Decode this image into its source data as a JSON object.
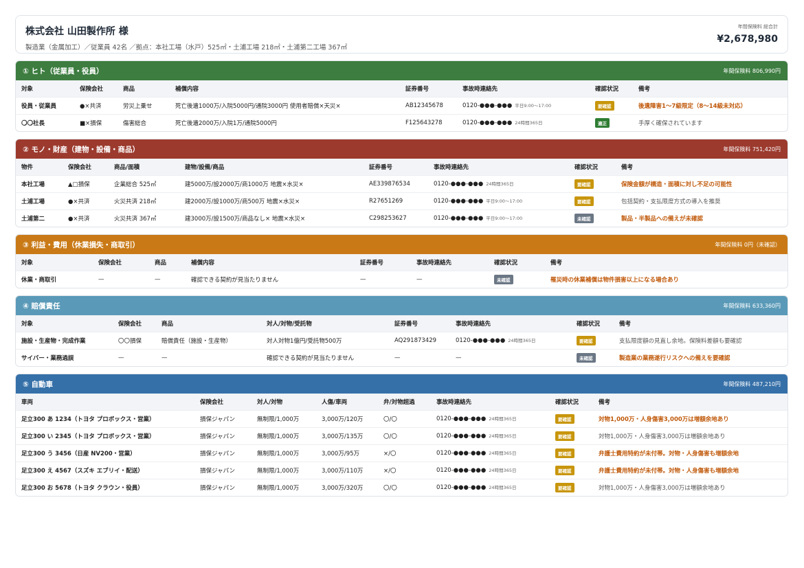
{
  "header": {
    "title": "株式会社 山田製作所 様",
    "subtitle": "製造業（金属加工）／従業員 42名 ／拠点：本社工場（水戸）525㎡・土浦工場 218㎡・土浦第二工場 367㎡",
    "total_label": "年間保険料 総合計",
    "total_amount": "¥2,678,980"
  },
  "colors": {
    "section1": "#3d7d40",
    "section2": "#9c3a2e",
    "section3": "#c97a17",
    "section4": "#5a9ab8",
    "section5": "#3670a8",
    "badge_confirm": "#c8960c",
    "badge_ok": "#2e7d32",
    "badge_unchecked": "#6b7785"
  },
  "sections": [
    {
      "title": "① ヒト（従業員・役員）",
      "premium": "年間保険料 806,990円",
      "columns": [
        "対象",
        "保険会社",
        "商品",
        "補償内容",
        "証券番号",
        "事故時連絡先",
        "確認状況",
        "備考"
      ],
      "rows": [
        [
          "役員・従業員",
          "●×共済",
          "労災上乗せ",
          "死亡後遺1000万/入院5000円/通院3000円 使用者賠償×天災×",
          "AB12345678",
          "0120-●●●-●●●",
          "平日9:00〜17:00",
          "要確認",
          "後遺障害1〜7級限定（8〜14級未対応）"
        ],
        [
          "〇〇社長",
          "■×損保",
          "傷害総合",
          "死亡後遺2000万/入院1万/通院5000円",
          "F125643278",
          "0120-●●●-●●●",
          "24時間365日",
          "適正",
          "手厚く確保されています"
        ]
      ]
    },
    {
      "title": "② モノ・財産（建物・設備・商品）",
      "premium": "年間保険料 751,420円",
      "columns": [
        "物件",
        "保険会社",
        "商品/面積",
        "建物/設備/商品",
        "証券番号",
        "事故時連絡先",
        "確認状況",
        "備考"
      ],
      "rows": [
        [
          "本社工場",
          "▲□損保",
          "企業総合 525㎡",
          "建5000万/設2000万/商1000万 地震×水災×",
          "AE339876534",
          "0120-●●●-●●●",
          "24時間365日",
          "要確認",
          "保険金額が構造・面積に対し不足の可能性"
        ],
        [
          "土浦工場",
          "●×共済",
          "火災共済 218㎡",
          "建2000万/設1000万/商500万 地震×水災×",
          "R27651269",
          "0120-●●●-●●●",
          "平日9:00〜17:00",
          "要確認",
          "包括契約・支払限度方式の導入を推奨"
        ],
        [
          "土浦第二",
          "●×共済",
          "火災共済 367㎡",
          "建3000万/設1500万/商品なし× 地震×水災×",
          "C298253627",
          "0120-●●●-●●●",
          "平日9:00〜17:00",
          "未確認",
          "製品・半製品への備えが未確認"
        ]
      ]
    },
    {
      "title": "③ 利益・費用（休業損失・商取引）",
      "premium": "年間保険料 0円（未確認）",
      "columns": [
        "対象",
        "保険会社",
        "商品",
        "補償内容",
        "証券番号",
        "事故時連絡先",
        "確認状況",
        "備考"
      ],
      "rows": [
        [
          "休業・商取引",
          "—",
          "—",
          "確認できる契約が見当たりません",
          "—",
          "—",
          "",
          "未確認",
          "罹災時の休業補償は物件損害以上になる場合あり"
        ]
      ]
    },
    {
      "title": "④ 賠償責任",
      "premium": "年間保険料 633,360円",
      "columns": [
        "対象",
        "保険会社",
        "商品",
        "対人/対物/受託物",
        "証券番号",
        "事故時連絡先",
        "確認状況",
        "備考"
      ],
      "rows": [
        [
          "施設・生産物・完成作業",
          "〇〇損保",
          "賠償責任（施設・生産物）",
          "対人対物1億円/受託物500万",
          "AQ291873429",
          "0120-●●●-●●●",
          "24時間365日",
          "要確認",
          "支払限度額の見直し余地。保険料差額も要確認"
        ],
        [
          "サイバー・業務過誤",
          "—",
          "—",
          "確認できる契約が見当たりません",
          "—",
          "—",
          "",
          "未確認",
          "製造業の業務遂行リスクへの備えを要確認"
        ]
      ]
    },
    {
      "title": "⑤ 自動車",
      "premium": "年間保険料 487,210円",
      "columns": [
        "車両",
        "保険会社",
        "対人/対物",
        "人傷/車両",
        "弁/対物超過",
        "事故時連絡先",
        "確認状況",
        "備考"
      ],
      "rows": [
        [
          "足立300 あ 1234（トヨタ プロボックス・営業）",
          "損保ジャパン",
          "無制限/1,000万",
          "3,000万/120万",
          "〇/〇",
          "0120-●●●-●●●",
          "24時間365日",
          "要確認",
          "対物1,000万・人身傷害3,000万は増額余地あり"
        ],
        [
          "足立300 い 2345（トヨタ プロボックス・営業）",
          "損保ジャパン",
          "無制限/1,000万",
          "3,000万/135万",
          "〇/〇",
          "0120-●●●-●●●",
          "24時間365日",
          "要確認",
          "対物1,000万・人身傷害3,000万は増額余地あり"
        ],
        [
          "足立300 う 3456（日産 NV200・営業）",
          "損保ジャパン",
          "無制限/1,000万",
          "3,000万/95万",
          "×/〇",
          "0120-●●●-●●●",
          "24時間365日",
          "要確認",
          "弁護士費用特約が未付帯。対物・人身傷害も増額余地"
        ],
        [
          "足立300 え 4567（スズキ エブリイ・配送）",
          "損保ジャパン",
          "無制限/1,000万",
          "3,000万/110万",
          "×/〇",
          "0120-●●●-●●●",
          "24時間365日",
          "要確認",
          "弁護士費用特約が未付帯。対物・人身傷害も増額余地"
        ],
        [
          "足立300 お 5678（トヨタ クラウン・役員）",
          "損保ジャパン",
          "無制限/1,000万",
          "3,000万/320万",
          "〇/〇",
          "0120-●●●-●●●",
          "24時間365日",
          "要確認",
          "対物1,000万・人身傷害3,000万は増額余地あり"
        ]
      ]
    }
  ]
}
